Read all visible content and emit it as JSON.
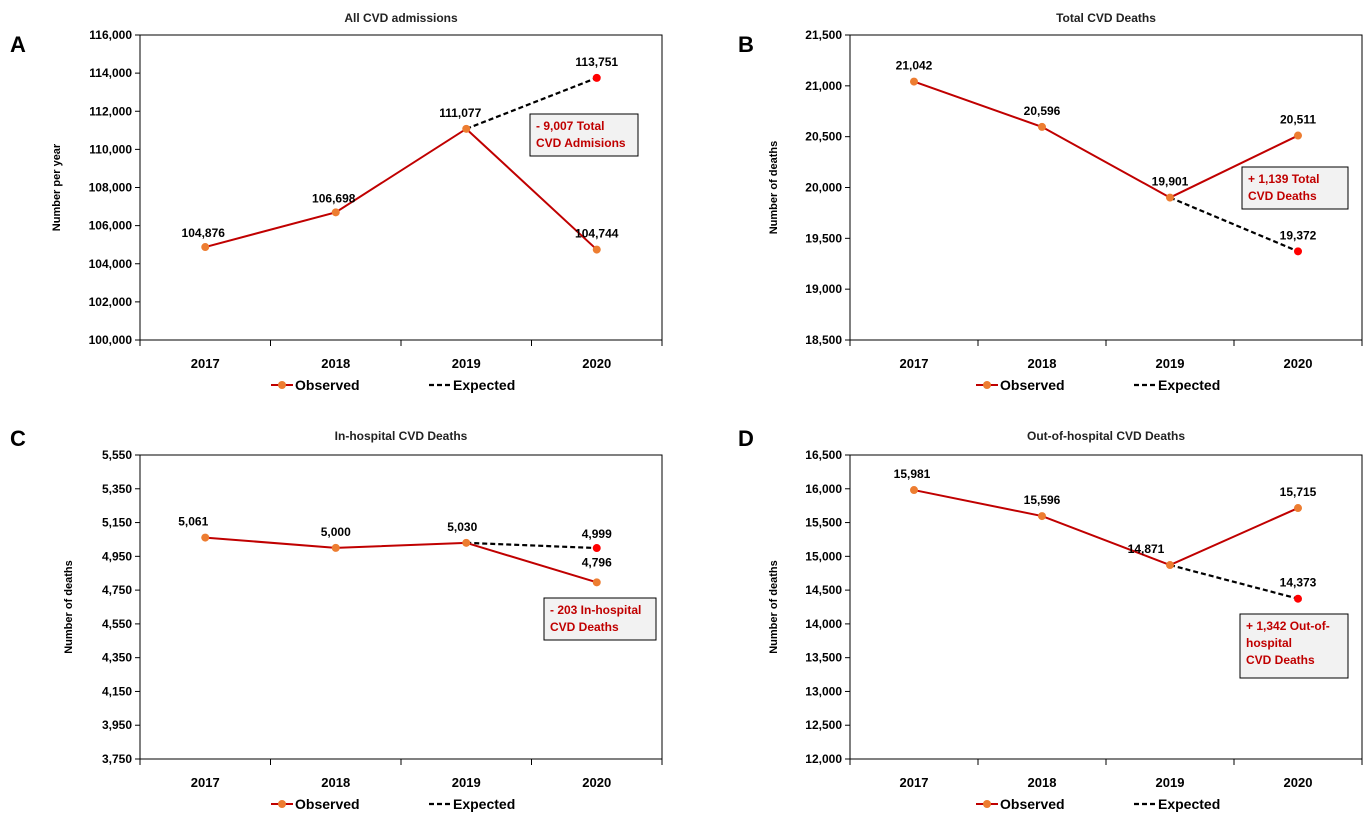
{
  "legend": {
    "observed": "Observed",
    "expected": "Expected"
  },
  "colors": {
    "observed_line": "#c00000",
    "observed_marker": "#ed7d31",
    "expected_line": "#000000",
    "expected_marker": "#ff0000",
    "note_text": "#c00000",
    "note_fill": "#f2f2f2"
  },
  "chart_data": [
    {
      "panel": "A",
      "type": "line",
      "title": "All CVD admissions",
      "xlabel": "",
      "ylabel": "Number per year",
      "categories": [
        "2017",
        "2018",
        "2019",
        "2020"
      ],
      "ylim": [
        100000,
        116000
      ],
      "yticks": [
        "100,000",
        "102,000",
        "104,000",
        "106,000",
        "108,000",
        "110,000",
        "112,000",
        "114,000",
        "116,000"
      ],
      "series": [
        {
          "name": "Observed",
          "values": [
            104876,
            106698,
            111077,
            104744
          ],
          "labels": [
            "104,876",
            "106,698",
            "111,077",
            "104,744"
          ]
        },
        {
          "name": "Expected",
          "values": [
            null,
            null,
            111077,
            113751
          ],
          "labels": [
            "",
            "",
            "",
            "113,751"
          ]
        }
      ],
      "annotation": [
        "- 9,007 Total",
        "CVD Admisions"
      ],
      "grid": false,
      "legend_position": "bottom"
    },
    {
      "panel": "B",
      "type": "line",
      "title": "Total CVD Deaths",
      "xlabel": "",
      "ylabel": "Number of deaths",
      "categories": [
        "2017",
        "2018",
        "2019",
        "2020"
      ],
      "ylim": [
        18500,
        21500
      ],
      "yticks": [
        "18,500",
        "19,000",
        "19,500",
        "20,000",
        "20,500",
        "21,000",
        "21,500"
      ],
      "series": [
        {
          "name": "Observed",
          "values": [
            21042,
            20596,
            19901,
            20511
          ],
          "labels": [
            "21,042",
            "20,596",
            "19,901",
            "20,511"
          ]
        },
        {
          "name": "Expected",
          "values": [
            null,
            null,
            19901,
            19372
          ],
          "labels": [
            "",
            "",
            "",
            "19,372"
          ]
        }
      ],
      "annotation": [
        "+ 1,139 Total",
        "CVD Deaths"
      ],
      "grid": false,
      "legend_position": "bottom"
    },
    {
      "panel": "C",
      "type": "line",
      "title": "In-hospital CVD Deaths",
      "xlabel": "",
      "ylabel": "Number of deaths",
      "categories": [
        "2017",
        "2018",
        "2019",
        "2020"
      ],
      "ylim": [
        3750,
        5550
      ],
      "yticks": [
        "3,750",
        "3,950",
        "4,150",
        "4,350",
        "4,550",
        "4,750",
        "4,950",
        "5,150",
        "5,350",
        "5,550"
      ],
      "series": [
        {
          "name": "Observed",
          "values": [
            5061,
            5000,
            5030,
            4796
          ],
          "labels": [
            "5,061",
            "5,000",
            "5,030",
            "4,796"
          ]
        },
        {
          "name": "Expected",
          "values": [
            null,
            null,
            5030,
            4999
          ],
          "labels": [
            "",
            "",
            "",
            "4,999"
          ]
        }
      ],
      "annotation": [
        "- 203 In-hospital",
        "CVD Deaths"
      ],
      "grid": false,
      "legend_position": "bottom"
    },
    {
      "panel": "D",
      "type": "line",
      "title": "Out-of-hospital CVD Deaths",
      "xlabel": "",
      "ylabel": "Number of deaths",
      "categories": [
        "2017",
        "2018",
        "2019",
        "2020"
      ],
      "ylim": [
        12000,
        16500
      ],
      "yticks": [
        "12,000",
        "12,500",
        "13,000",
        "13,500",
        "14,000",
        "14,500",
        "15,000",
        "15,500",
        "16,000",
        "16,500"
      ],
      "series": [
        {
          "name": "Observed",
          "values": [
            15981,
            15596,
            14871,
            15715
          ],
          "labels": [
            "15,981",
            "15,596",
            "14,871",
            "15,715"
          ]
        },
        {
          "name": "Expected",
          "values": [
            null,
            null,
            14871,
            14373
          ],
          "labels": [
            "",
            "",
            "",
            "14,373"
          ]
        }
      ],
      "annotation": [
        "+ 1,342 Out-of-",
        "hospital",
        "CVD Deaths"
      ],
      "grid": false,
      "legend_position": "bottom"
    }
  ]
}
